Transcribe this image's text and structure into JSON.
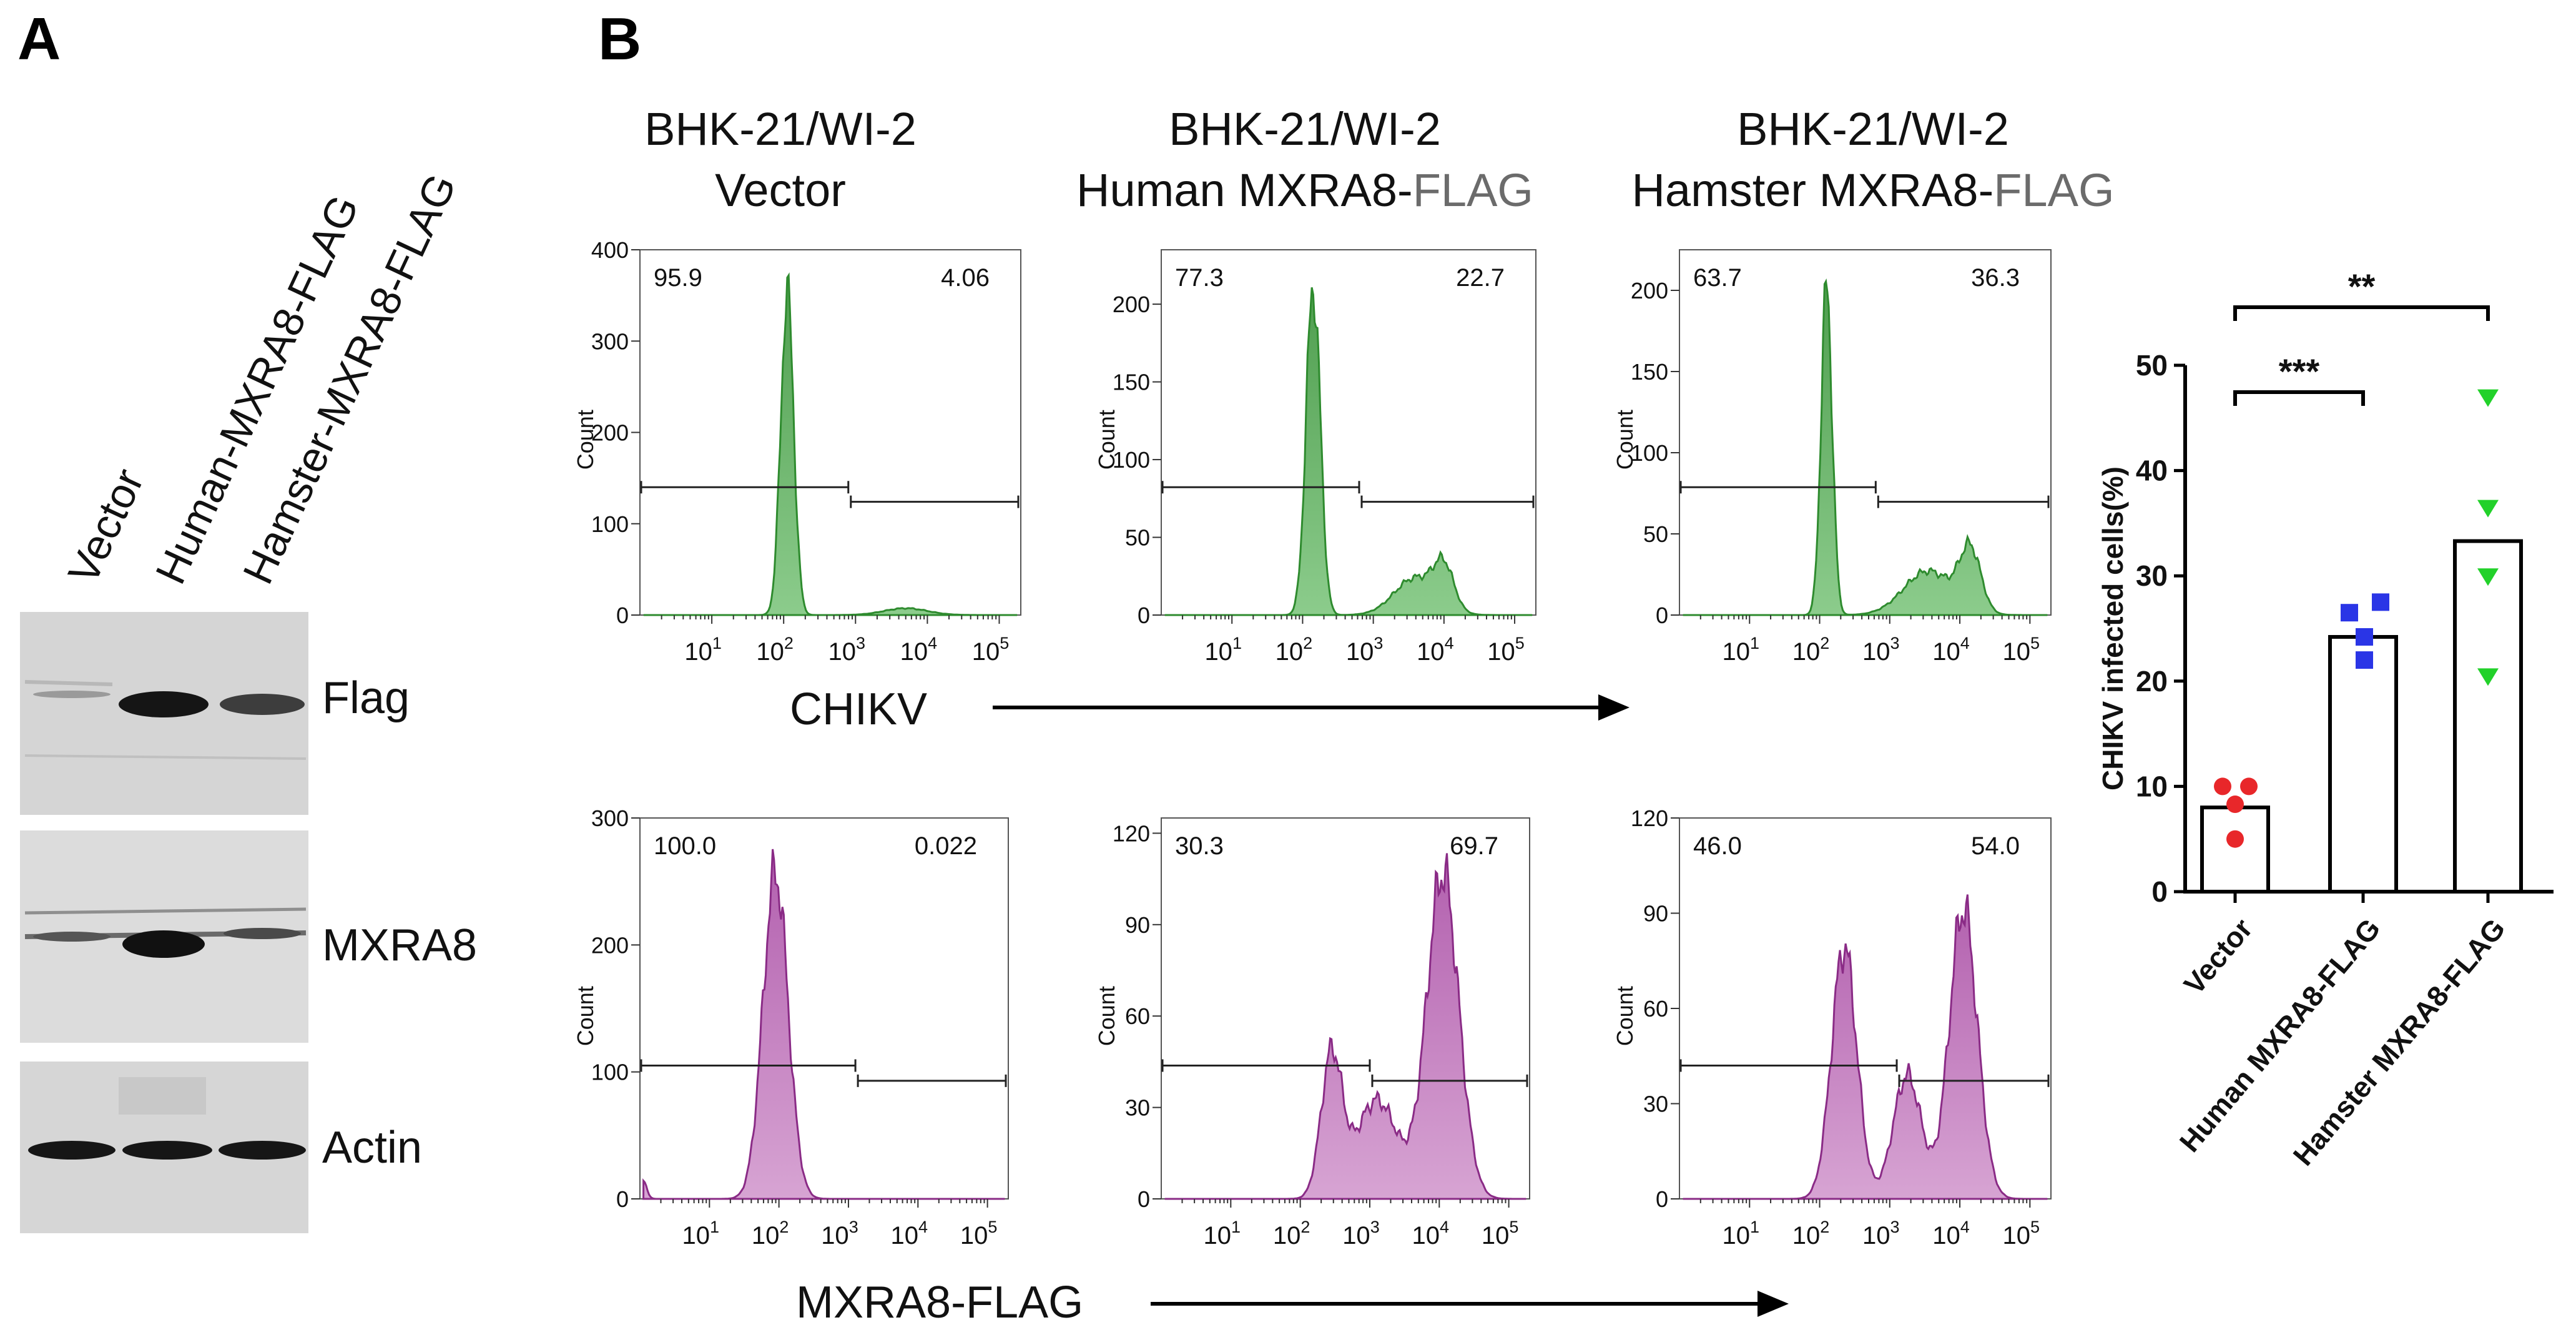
{
  "panel_a": {
    "label": "A",
    "lanes": [
      "Vector",
      "Human-MXRA8-FLAG",
      "Hamster-MXRA8-FLAG"
    ],
    "blots": [
      {
        "label": "Flag",
        "bands": [
          0.06,
          0.95,
          0.6
        ]
      },
      {
        "label": "MXRA8",
        "bands": [
          0.45,
          1.0,
          0.5
        ]
      },
      {
        "label": "Actin",
        "bands": [
          1.0,
          1.0,
          1.0
        ]
      }
    ]
  },
  "panel_b": {
    "label": "B",
    "column_titles": [
      {
        "line1": "BHK-21/WI-2",
        "line2": "Vector",
        "line2_suffix": ""
      },
      {
        "line1": "BHK-21/WI-2",
        "line2": "Human MXRA8-",
        "line2_suffix": "FLAG"
      },
      {
        "line1": "BHK-21/WI-2",
        "line2": "Hamster MXRA8-",
        "line2_suffix": "FLAG"
      }
    ],
    "row_axis_labels": [
      "CHIKV",
      "MXRA8-FLAG"
    ],
    "x_ticks": [
      "10",
      "10",
      "10",
      "10",
      "10"
    ],
    "x_tick_exponents": [
      "1",
      "2",
      "3",
      "4",
      "5"
    ],
    "y_axis_label": "Count",
    "histograms": [
      {
        "row": 0,
        "col": 0,
        "color": "green",
        "ymax": 400,
        "yticks": [
          "0",
          "100",
          "200",
          "300",
          "400"
        ],
        "left_pct": "95.9",
        "right_pct": "4.06",
        "gate_log": 2.9
      },
      {
        "row": 0,
        "col": 1,
        "color": "green",
        "ymax": 235,
        "yticks": [
          "0",
          "50",
          "100",
          "150",
          "200"
        ],
        "left_pct": "77.3",
        "right_pct": "22.7",
        "gate_log": 2.8
      },
      {
        "row": 0,
        "col": 2,
        "color": "green",
        "ymax": 225,
        "yticks": [
          "0",
          "50",
          "100",
          "150",
          "200"
        ],
        "left_pct": "63.7",
        "right_pct": "36.3",
        "gate_log": 2.8
      },
      {
        "row": 1,
        "col": 0,
        "color": "purple",
        "ymax": 300,
        "yticks": [
          "0",
          "100",
          "200",
          "300"
        ],
        "left_pct": "100.0",
        "right_pct": "0.022",
        "gate_log": 3.1
      },
      {
        "row": 1,
        "col": 1,
        "color": "purple",
        "ymax": 125,
        "yticks": [
          "0",
          "30",
          "60",
          "90",
          "120"
        ],
        "left_pct": "30.3",
        "right_pct": "69.7",
        "gate_log": 3.0
      },
      {
        "row": 1,
        "col": 2,
        "color": "purple",
        "ymax": 120,
        "yticks": [
          "0",
          "30",
          "60",
          "90",
          "120"
        ],
        "left_pct": "46.0",
        "right_pct": "54.0",
        "gate_log": 3.1
      }
    ]
  },
  "chart_data": {
    "type": "bar",
    "title": "",
    "xlabel": "",
    "ylabel": "CHIKV infected cells(%)",
    "ylim": [
      0,
      50
    ],
    "yticks": [
      "0",
      "10",
      "20",
      "30",
      "40",
      "50"
    ],
    "categories": [
      "Vector",
      "Human MXRA8-FLAG",
      "Hamster MXRA8-FLAG"
    ],
    "values": [
      8,
      24.2,
      33.3
    ],
    "points": [
      [
        10,
        10,
        8.3,
        5
      ],
      [
        27.5,
        26.5,
        24.2,
        22
      ],
      [
        47,
        36.5,
        30,
        20.5
      ]
    ],
    "point_colors": [
      "#e8272a",
      "#2a35e6",
      "#22d12a"
    ],
    "significance": [
      {
        "from": 0,
        "to": 1,
        "label": "***"
      },
      {
        "from": 0,
        "to": 2,
        "label": "**"
      }
    ]
  }
}
